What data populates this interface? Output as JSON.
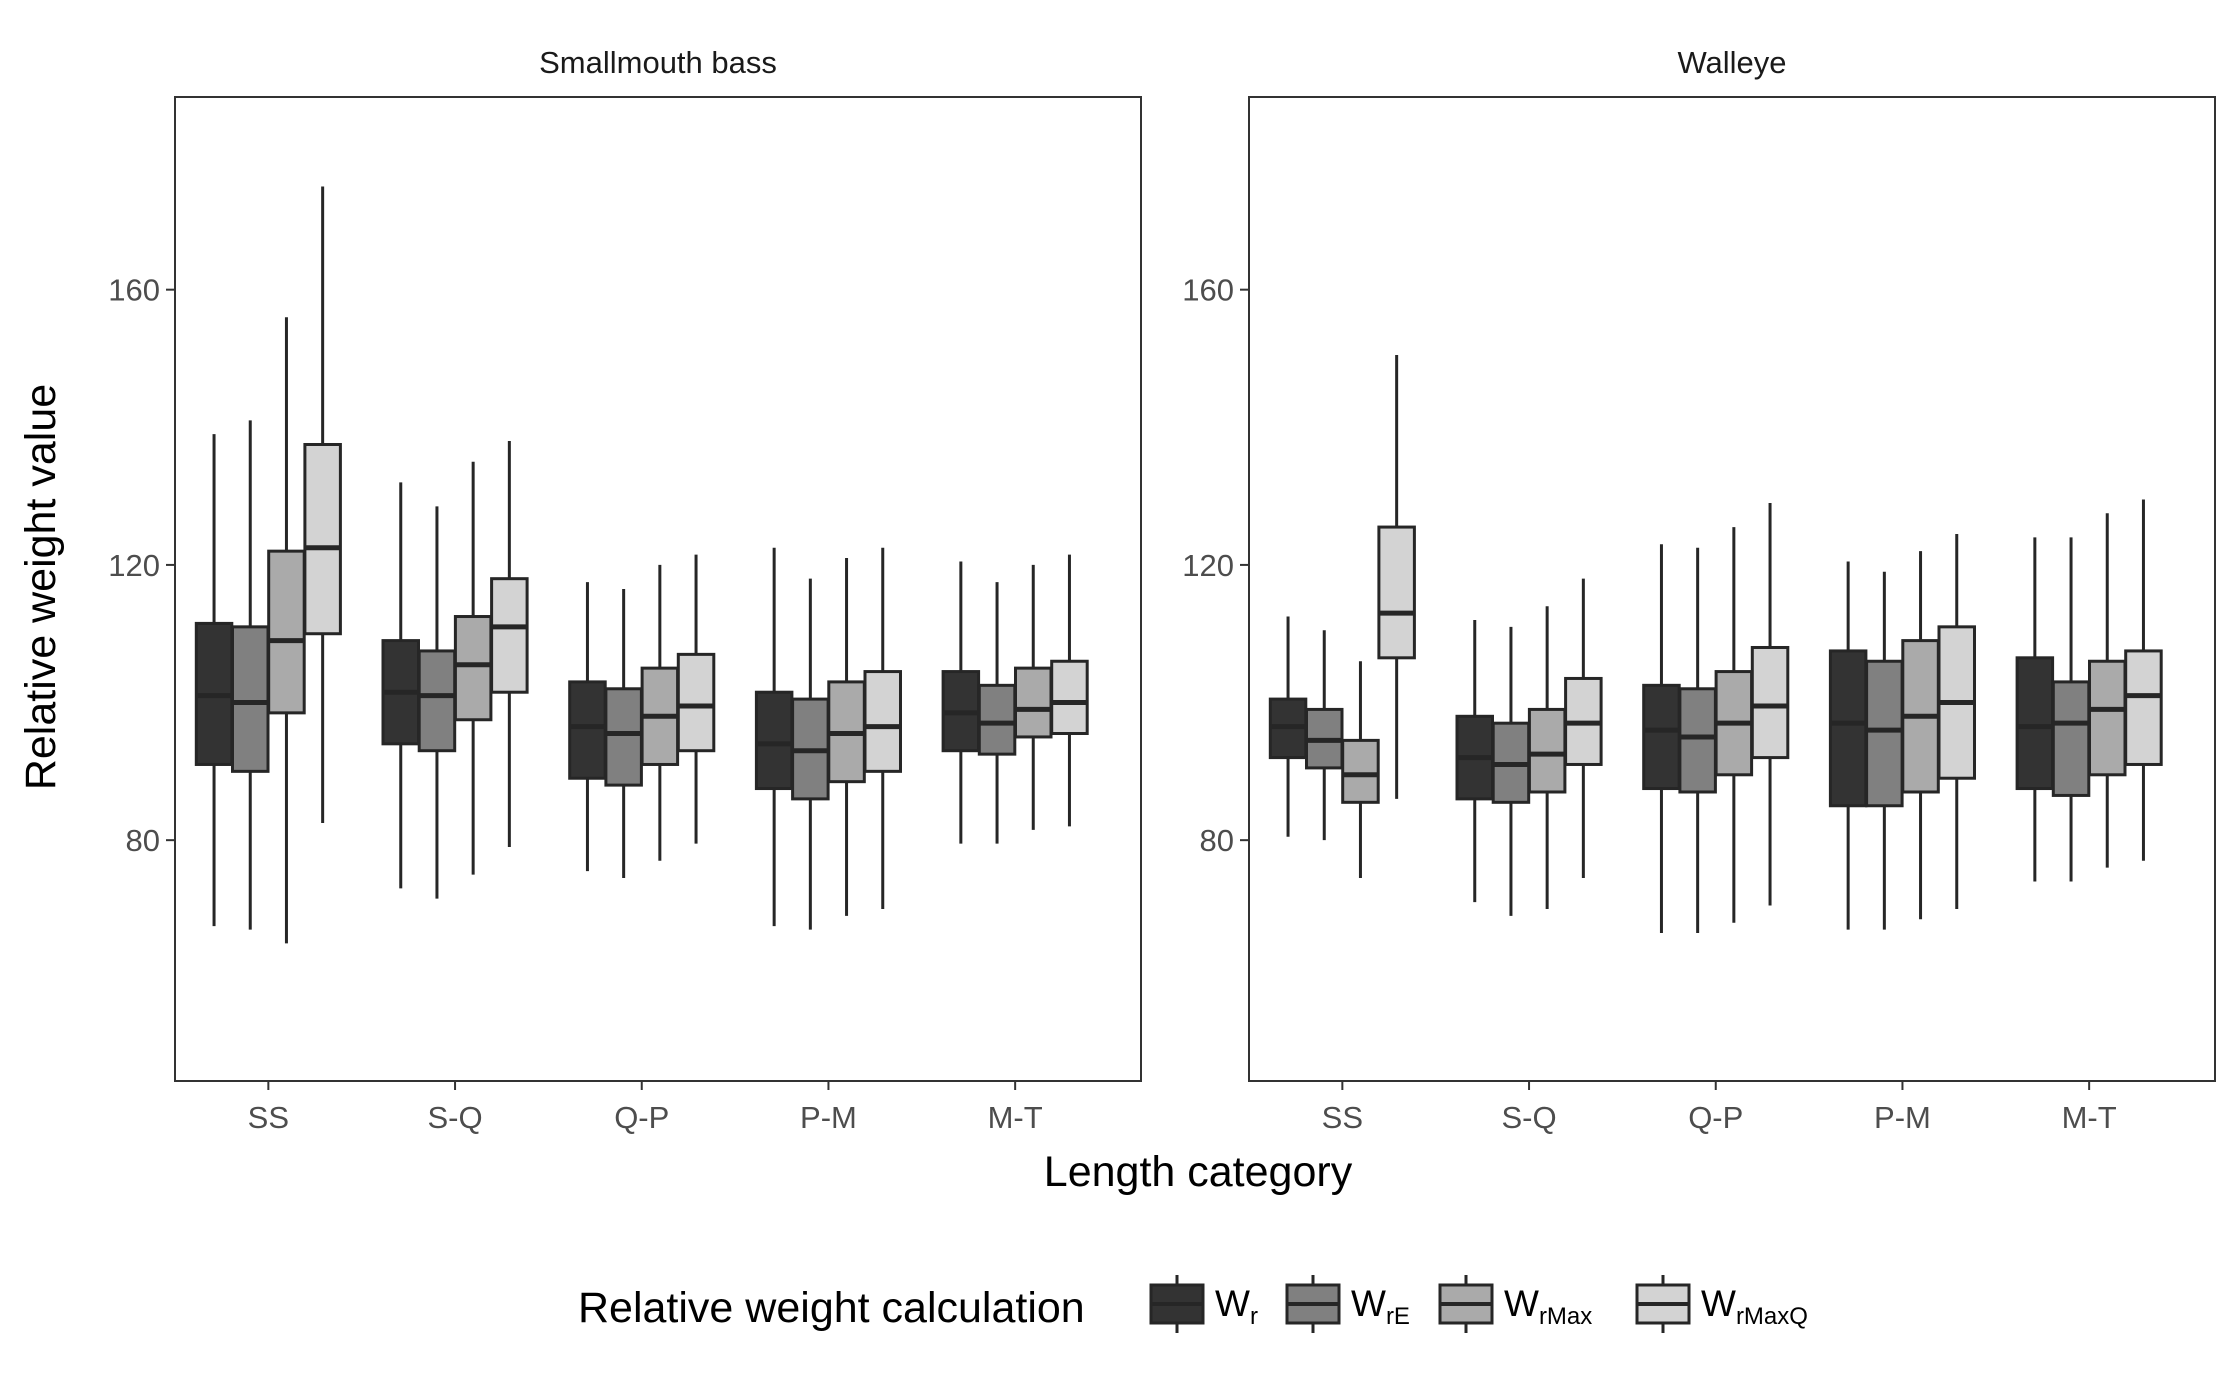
{
  "chart_data": {
    "type": "boxplot",
    "xlabel": "Length category",
    "ylabel": "Relative weight value",
    "ylim": [
      45,
      188
    ],
    "yticks": [
      80,
      120,
      160
    ],
    "categories": [
      "SS",
      "S-Q",
      "Q-P",
      "P-M",
      "M-T"
    ],
    "legend": {
      "title": "Relative weight calculation",
      "position": "bottom",
      "entries": [
        {
          "base": "W",
          "sub": "r",
          "color": "#333333"
        },
        {
          "base": "W",
          "sub": "rE",
          "color": "#808080"
        },
        {
          "base": "W",
          "sub": "rMax",
          "color": "#aaaaaa"
        },
        {
          "base": "W",
          "sub": "rMaxQ",
          "color": "#d3d3d3"
        }
      ]
    },
    "grid": false,
    "panels": [
      {
        "title": "Smallmouth bass",
        "groups": [
          {
            "category": "SS",
            "boxes": [
              {
                "series": "Wr",
                "min": 67.5,
                "q1": 91,
                "median": 101,
                "q3": 111.5,
                "max": 139
              },
              {
                "series": "WrE",
                "min": 67,
                "q1": 90,
                "median": 100,
                "q3": 111,
                "max": 141
              },
              {
                "series": "WrMax",
                "min": 65,
                "q1": 98.5,
                "median": 109,
                "q3": 122,
                "max": 156
              },
              {
                "series": "WrMaxQ",
                "min": 82.5,
                "q1": 110,
                "median": 122.5,
                "q3": 137.5,
                "max": 175
              }
            ]
          },
          {
            "category": "S-Q",
            "boxes": [
              {
                "series": "Wr",
                "min": 73,
                "q1": 94,
                "median": 101.5,
                "q3": 109,
                "max": 132
              },
              {
                "series": "WrE",
                "min": 71.5,
                "q1": 93,
                "median": 101,
                "q3": 107.5,
                "max": 128.5
              },
              {
                "series": "WrMax",
                "min": 75,
                "q1": 97.5,
                "median": 105.5,
                "q3": 112.5,
                "max": 135
              },
              {
                "series": "WrMaxQ",
                "min": 79,
                "q1": 101.5,
                "median": 111,
                "q3": 118,
                "max": 138
              }
            ]
          },
          {
            "category": "Q-P",
            "boxes": [
              {
                "series": "Wr",
                "min": 75.5,
                "q1": 89,
                "median": 96.5,
                "q3": 103,
                "max": 117.5
              },
              {
                "series": "WrE",
                "min": 74.5,
                "q1": 88,
                "median": 95.5,
                "q3": 102,
                "max": 116.5
              },
              {
                "series": "WrMax",
                "min": 77,
                "q1": 91,
                "median": 98,
                "q3": 105,
                "max": 120
              },
              {
                "series": "WrMaxQ",
                "min": 79.5,
                "q1": 93,
                "median": 99.5,
                "q3": 107,
                "max": 121.5
              }
            ]
          },
          {
            "category": "P-M",
            "boxes": [
              {
                "series": "Wr",
                "min": 67.5,
                "q1": 87.5,
                "median": 94,
                "q3": 101.5,
                "max": 122.5
              },
              {
                "series": "WrE",
                "min": 67,
                "q1": 86,
                "median": 93,
                "q3": 100.5,
                "max": 118
              },
              {
                "series": "WrMax",
                "min": 69,
                "q1": 88.5,
                "median": 95.5,
                "q3": 103,
                "max": 121
              },
              {
                "series": "WrMaxQ",
                "min": 70,
                "q1": 90,
                "median": 96.5,
                "q3": 104.5,
                "max": 122.5
              }
            ]
          },
          {
            "category": "M-T",
            "boxes": [
              {
                "series": "Wr",
                "min": 79.5,
                "q1": 93,
                "median": 98.5,
                "q3": 104.5,
                "max": 120.5
              },
              {
                "series": "WrE",
                "min": 79.5,
                "q1": 92.5,
                "median": 97,
                "q3": 102.5,
                "max": 117.5
              },
              {
                "series": "WrMax",
                "min": 81.5,
                "q1": 95,
                "median": 99,
                "q3": 105,
                "max": 120
              },
              {
                "series": "WrMaxQ",
                "min": 82,
                "q1": 95.5,
                "median": 100,
                "q3": 106,
                "max": 121.5
              }
            ]
          }
        ]
      },
      {
        "title": "Walleye",
        "groups": [
          {
            "category": "SS",
            "boxes": [
              {
                "series": "Wr",
                "min": 80.5,
                "q1": 92,
                "median": 96.5,
                "q3": 100.5,
                "max": 112.5
              },
              {
                "series": "WrE",
                "min": 80,
                "q1": 90.5,
                "median": 94.5,
                "q3": 99,
                "max": 110.5
              },
              {
                "series": "WrMax",
                "min": 74.5,
                "q1": 85.5,
                "median": 89.5,
                "q3": 94.5,
                "max": 106
              },
              {
                "series": "WrMaxQ",
                "min": 86,
                "q1": 106.5,
                "median": 113,
                "q3": 125.5,
                "max": 150.5
              }
            ]
          },
          {
            "category": "S-Q",
            "boxes": [
              {
                "series": "Wr",
                "min": 71,
                "q1": 86,
                "median": 92,
                "q3": 98,
                "max": 112
              },
              {
                "series": "WrE",
                "min": 69,
                "q1": 85.5,
                "median": 91,
                "q3": 97,
                "max": 111
              },
              {
                "series": "WrMax",
                "min": 70,
                "q1": 87,
                "median": 92.5,
                "q3": 99,
                "max": 114
              },
              {
                "series": "WrMaxQ",
                "min": 74.5,
                "q1": 91,
                "median": 97,
                "q3": 103.5,
                "max": 118
              }
            ]
          },
          {
            "category": "Q-P",
            "boxes": [
              {
                "series": "Wr",
                "min": 66.5,
                "q1": 87.5,
                "median": 96,
                "q3": 102.5,
                "max": 123
              },
              {
                "series": "WrE",
                "min": 66.5,
                "q1": 87,
                "median": 95,
                "q3": 102,
                "max": 122.5
              },
              {
                "series": "WrMax",
                "min": 68,
                "q1": 89.5,
                "median": 97,
                "q3": 104.5,
                "max": 125.5
              },
              {
                "series": "WrMaxQ",
                "min": 70.5,
                "q1": 92,
                "median": 99.5,
                "q3": 108,
                "max": 129
              }
            ]
          },
          {
            "category": "P-M",
            "boxes": [
              {
                "series": "Wr",
                "min": 67,
                "q1": 85,
                "median": 97,
                "q3": 107.5,
                "max": 120.5
              },
              {
                "series": "WrE",
                "min": 67,
                "q1": 85,
                "median": 96,
                "q3": 106,
                "max": 119
              },
              {
                "series": "WrMax",
                "min": 68.5,
                "q1": 87,
                "median": 98,
                "q3": 109,
                "max": 122
              },
              {
                "series": "WrMaxQ",
                "min": 70,
                "q1": 89,
                "median": 100,
                "q3": 111,
                "max": 124.5
              }
            ]
          },
          {
            "category": "M-T",
            "boxes": [
              {
                "series": "Wr",
                "min": 74,
                "q1": 87.5,
                "median": 96.5,
                "q3": 106.5,
                "max": 124
              },
              {
                "series": "WrE",
                "min": 74,
                "q1": 86.5,
                "median": 97,
                "q3": 103,
                "max": 124
              },
              {
                "series": "WrMax",
                "min": 76,
                "q1": 89.5,
                "median": 99,
                "q3": 106,
                "max": 127.5
              },
              {
                "series": "WrMaxQ",
                "min": 77,
                "q1": 91,
                "median": 101,
                "q3": 107.5,
                "max": 129.5
              }
            ]
          }
        ]
      }
    ]
  }
}
